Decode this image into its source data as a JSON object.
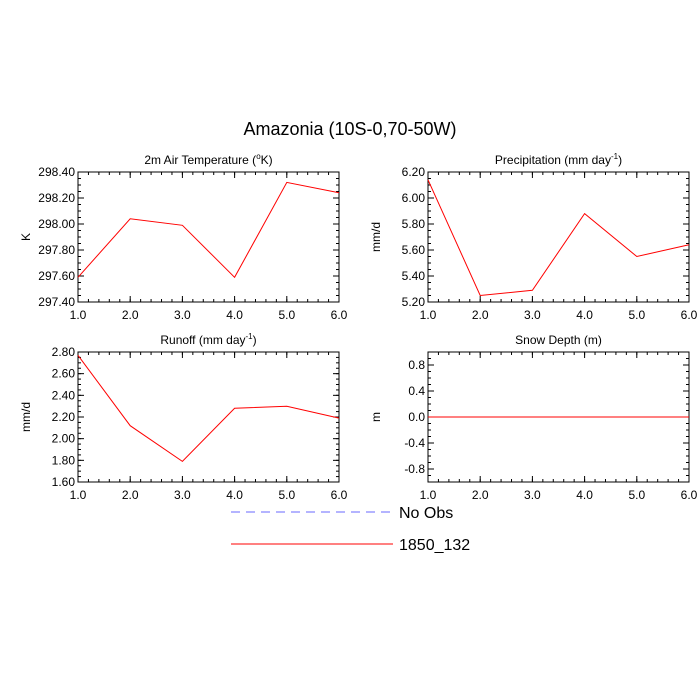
{
  "figure": {
    "title": "Amazonia (10S-0,70-50W)"
  },
  "legend": {
    "entries": [
      {
        "label": "No Obs",
        "color": "#6a6aff",
        "dash": "dashed"
      },
      {
        "label": "1850_132",
        "color": "#ff0000",
        "dash": "solid"
      }
    ]
  },
  "chart_data": [
    {
      "type": "line",
      "title": "2m Air Temperature",
      "title_unit_pre": " (",
      "title_unit_sup": "o",
      "title_unit_post": "K)",
      "ylabel": "K",
      "x": [
        1,
        2,
        3,
        4,
        5,
        6
      ],
      "xlim": [
        1,
        6
      ],
      "xticks": [
        "1.0",
        "2.0",
        "3.0",
        "4.0",
        "5.0",
        "6.0"
      ],
      "ylim": [
        297.4,
        298.4
      ],
      "yticks": [
        297.4,
        297.6,
        297.8,
        298.0,
        298.2,
        298.4
      ],
      "yticklabels": [
        "297.40",
        "297.60",
        "297.80",
        "298.00",
        "298.20",
        "298.40"
      ],
      "yminor": 0.05,
      "series": [
        {
          "name": "1850_132",
          "color": "#ff0000",
          "values": [
            297.59,
            298.04,
            297.99,
            297.59,
            298.32,
            298.24
          ]
        }
      ]
    },
    {
      "type": "line",
      "title": "Precipitation",
      "title_unit_pre": " (mm day",
      "title_unit_sup": "-1",
      "title_unit_post": ")",
      "ylabel": "mm/d",
      "x": [
        1,
        2,
        3,
        4,
        5,
        6
      ],
      "xlim": [
        1,
        6
      ],
      "xticks": [
        "1.0",
        "2.0",
        "3.0",
        "4.0",
        "5.0",
        "6.0"
      ],
      "ylim": [
        5.2,
        6.2
      ],
      "yticks": [
        5.2,
        5.4,
        5.6,
        5.8,
        6.0,
        6.2
      ],
      "yticklabels": [
        "5.20",
        "5.40",
        "5.60",
        "5.80",
        "6.00",
        "6.20"
      ],
      "yminor": 0.05,
      "series": [
        {
          "name": "1850_132",
          "color": "#ff0000",
          "values": [
            6.14,
            5.25,
            5.29,
            5.88,
            5.55,
            5.64
          ]
        }
      ]
    },
    {
      "type": "line",
      "title": "Runoff",
      "title_unit_pre": " (mm day",
      "title_unit_sup": "-1",
      "title_unit_post": ")",
      "ylabel": "mm/d",
      "x": [
        1,
        2,
        3,
        4,
        5,
        6
      ],
      "xlim": [
        1,
        6
      ],
      "xticks": [
        "1.0",
        "2.0",
        "3.0",
        "4.0",
        "5.0",
        "6.0"
      ],
      "ylim": [
        1.6,
        2.8
      ],
      "yticks": [
        1.6,
        1.8,
        2.0,
        2.2,
        2.4,
        2.6,
        2.8
      ],
      "yticklabels": [
        "1.60",
        "1.80",
        "2.00",
        "2.20",
        "2.40",
        "2.60",
        "2.80"
      ],
      "yminor": 0.05,
      "series": [
        {
          "name": "1850_132",
          "color": "#ff0000",
          "values": [
            2.77,
            2.12,
            1.79,
            2.28,
            2.3,
            2.19
          ]
        }
      ]
    },
    {
      "type": "line",
      "title": "Snow Depth (m)",
      "title_unit_pre": "",
      "title_unit_sup": "",
      "title_unit_post": "",
      "ylabel": "m",
      "x": [
        1,
        2,
        3,
        4,
        5,
        6
      ],
      "xlim": [
        1,
        6
      ],
      "xticks": [
        "1.0",
        "2.0",
        "3.0",
        "4.0",
        "5.0",
        "6.0"
      ],
      "ylim": [
        -1.0,
        1.0
      ],
      "yticks": [
        -0.8,
        -0.4,
        0.0,
        0.4,
        0.8
      ],
      "yticklabels": [
        "-0.8",
        "-0.4",
        "0.0",
        "0.4",
        "0.8"
      ],
      "yminor": 0.1,
      "series": [
        {
          "name": "1850_132",
          "color": "#ff0000",
          "values": [
            0,
            0,
            0,
            0,
            0,
            0
          ]
        }
      ]
    }
  ]
}
